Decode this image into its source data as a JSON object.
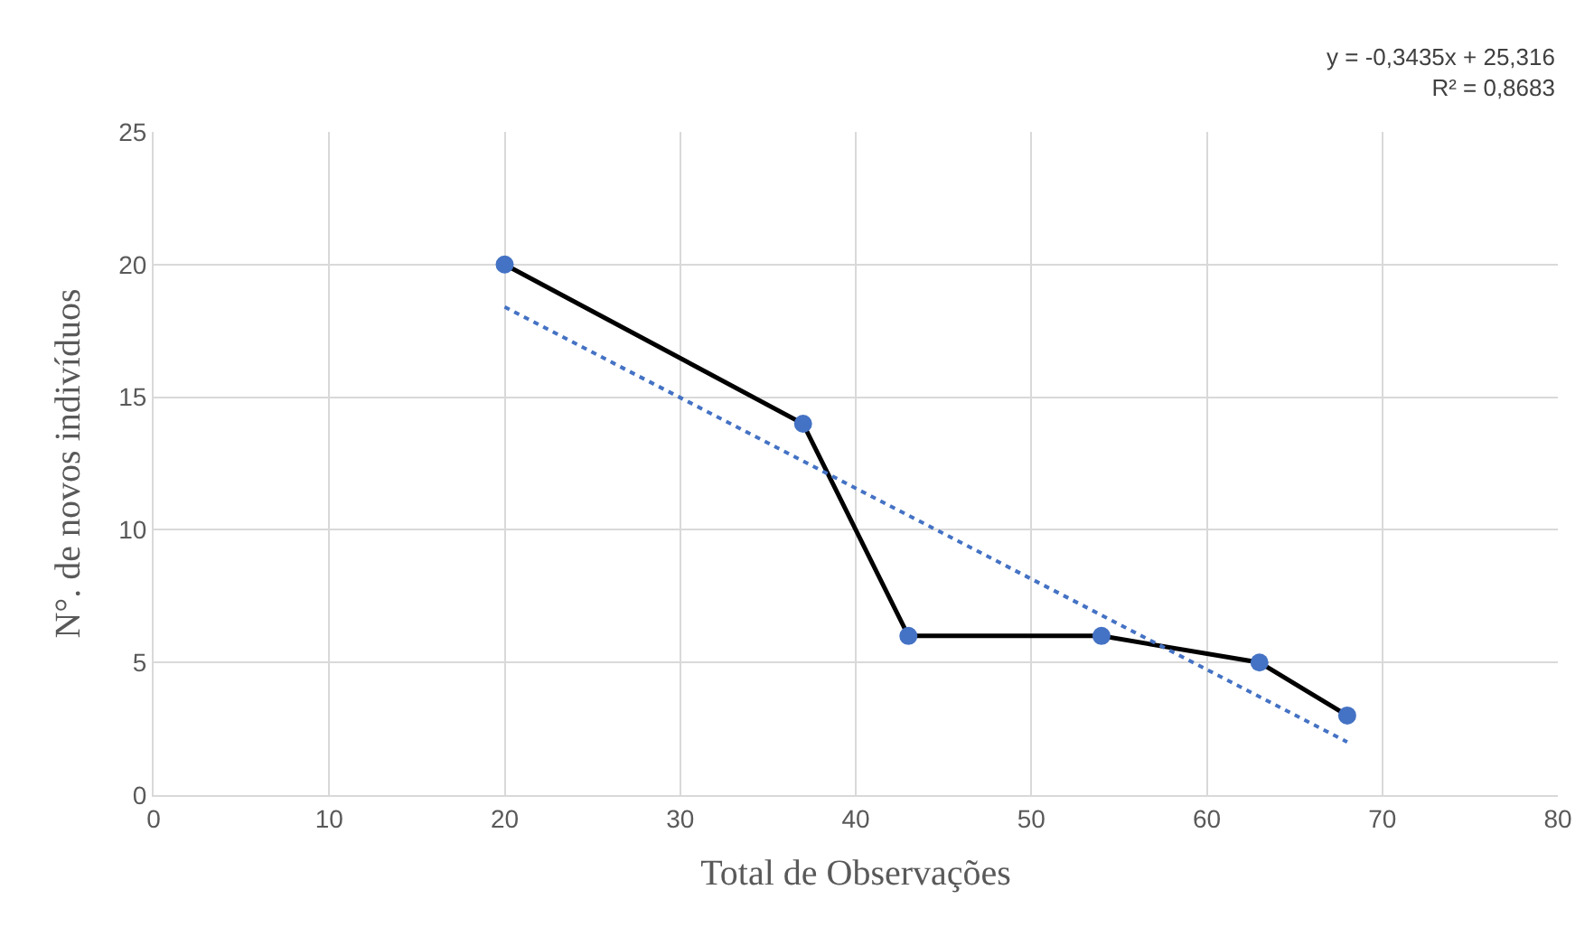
{
  "chart_data": {
    "type": "line",
    "xlabel": "Total de Observações",
    "ylabel": "N°. de novos indivíduos",
    "x": [
      20,
      37,
      43,
      54,
      63,
      68
    ],
    "series": [
      {
        "color": "#000000",
        "marker": "none",
        "line_style": "solid",
        "values": [
          20,
          14,
          6,
          6,
          5,
          3
        ]
      },
      {
        "type": "scatter",
        "color": "#4472c4",
        "marker": "circle",
        "values": [
          20,
          14,
          6,
          6,
          5,
          3
        ]
      },
      {
        "color": "#4472c4",
        "marker": "none",
        "line_style": "dotted",
        "x": [
          20,
          68
        ],
        "values": [
          18.4,
          2.0
        ]
      }
    ],
    "annotations": [
      "y = -0,3435x + 25,316\nR² = 0,8683"
    ],
    "xlim": [
      0,
      80
    ],
    "xticks": [
      0,
      10,
      20,
      30,
      40,
      50,
      60,
      70,
      80
    ],
    "ylim": [
      0,
      25
    ],
    "yticks": [
      0,
      5,
      10,
      15,
      20,
      25
    ],
    "grid": true
  }
}
